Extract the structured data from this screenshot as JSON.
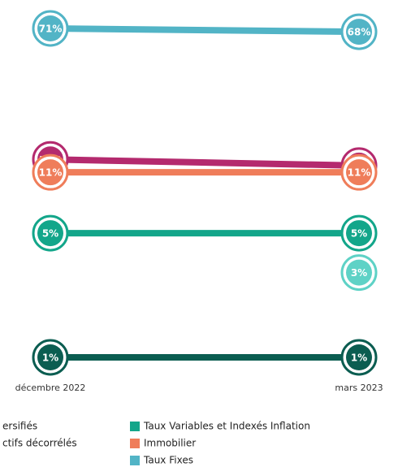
{
  "chart_data": {
    "type": "slope",
    "categories": [
      "décembre 2022",
      "mars 2023"
    ],
    "yscale": "log",
    "ylim": [
      1,
      71
    ],
    "series": [
      {
        "name": "ersifiés",
        "color": "#b42a6e",
        "values": [
          13,
          12
        ],
        "value_labels": [
          "13%",
          "12%"
        ]
      },
      {
        "name": "ctifs décorrélés",
        "color": "#0b5d51",
        "values": [
          1,
          1
        ],
        "value_labels": [
          "1%",
          "1%"
        ]
      },
      {
        "name": "Taux Variables et Indexés Inflation",
        "color": "#13a68a",
        "values": [
          5,
          5
        ],
        "value_labels": [
          "5%",
          "5%"
        ]
      },
      {
        "name": "Immobilier",
        "color": "#ef7d5a",
        "values": [
          11,
          11
        ],
        "value_labels": [
          "11%",
          "11%"
        ]
      },
      {
        "name": "Taux Fixes",
        "color": "#52b4c6",
        "values": [
          71,
          68
        ],
        "value_labels": [
          "71%",
          "68%"
        ]
      },
      {
        "color": "#5ed2c6",
        "values": [
          null,
          3
        ],
        "value_labels": [
          null,
          "3%"
        ]
      }
    ]
  }
}
